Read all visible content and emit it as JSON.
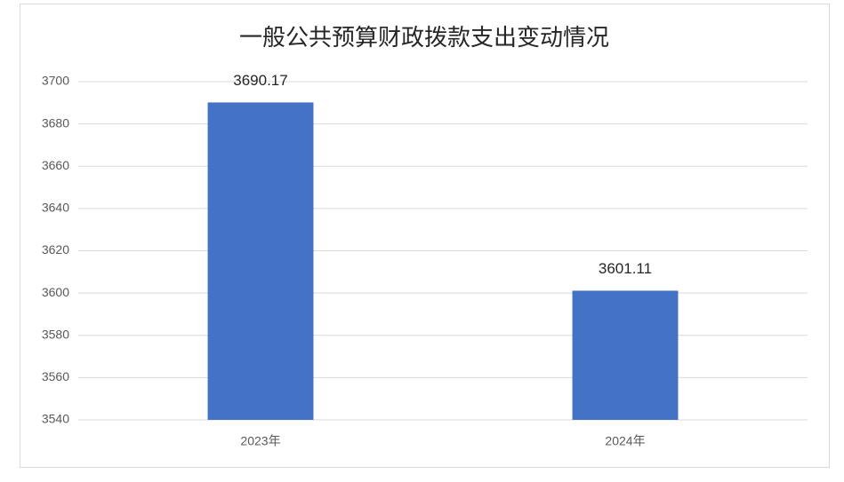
{
  "chart_data": {
    "type": "bar",
    "title": "一般公共预算财政拨款支出变动情况",
    "categories": [
      "2023年",
      "2024年"
    ],
    "values": [
      3690.17,
      3601.11
    ],
    "color": "#4472c4",
    "ylim": [
      3540,
      3700
    ],
    "yticks": [
      3540,
      3560,
      3580,
      3600,
      3620,
      3640,
      3660,
      3680,
      3700
    ],
    "grid": true
  }
}
